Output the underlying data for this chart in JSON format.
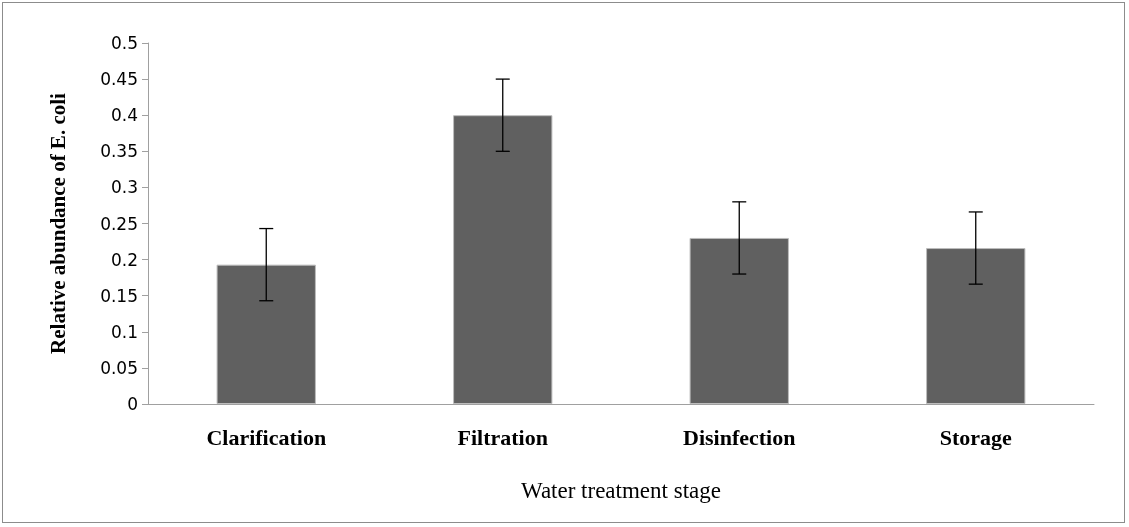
{
  "chart_data": {
    "type": "bar",
    "xlabel": "Water treatment stage",
    "ylabel": "Relative abundance of E. coli",
    "categories": [
      "Clarification",
      "Filtration",
      "Disinfection",
      "Storage"
    ],
    "values": [
      0.193,
      0.4,
      0.23,
      0.216
    ],
    "errors": [
      0.05,
      0.05,
      0.05,
      0.05
    ],
    "color": "#606060",
    "ylim": [
      0,
      0.5
    ],
    "yticks": [
      0,
      0.05,
      0.1,
      0.15,
      0.2,
      0.25,
      0.3,
      0.35,
      0.4,
      0.45,
      0.5
    ],
    "grid": false
  }
}
